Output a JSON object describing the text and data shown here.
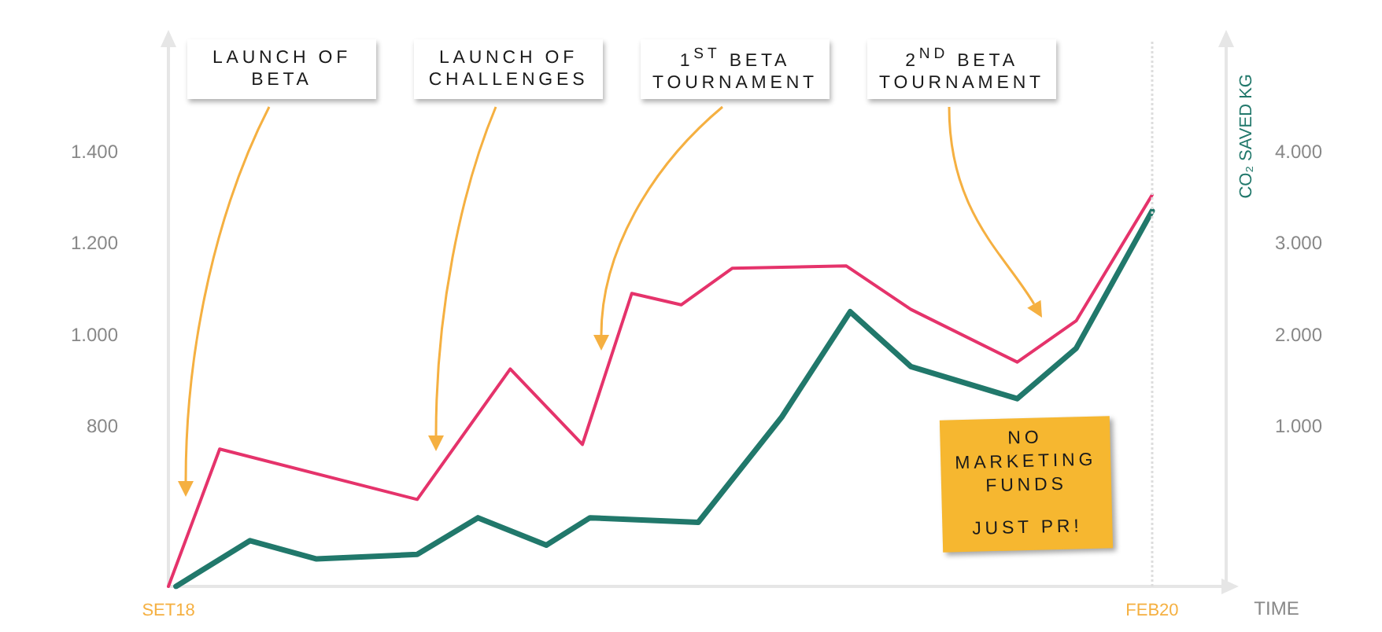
{
  "chart_data": {
    "type": "line",
    "xlabel": "TIME",
    "y2label": "CO₂ SAVED KG",
    "xlim": [
      "2018-09-01",
      "2020-03-11"
    ],
    "xticks": [
      {
        "value": "2018-09",
        "label": "SET18"
      },
      {
        "value": "2020-02",
        "label": "FEB20"
      }
    ],
    "ylim": [
      450,
      1645
    ],
    "yticks": [
      800,
      {
        "value": 1000,
        "label": "1.000"
      },
      {
        "value": 1200,
        "label": "1.200"
      },
      {
        "value": 1400,
        "label": "1.400"
      }
    ],
    "y2lim": [
      -750,
      5225
    ],
    "y2ticks": [
      {
        "value": 1000,
        "label": "1.000"
      },
      {
        "value": 2000,
        "label": "2.000"
      },
      {
        "value": 3000,
        "label": "3.000"
      },
      {
        "value": 4000,
        "label": "4.000"
      }
    ],
    "series": [
      {
        "color": "#e5336b",
        "x": [
          "2018-09-01",
          "2018-09-28",
          "2019-01-10",
          "2019-02-28",
          "2019-04-07",
          "2019-05-03",
          "2019-05-29",
          "2019-06-25",
          "2019-08-24",
          "2019-09-27",
          "2019-11-22",
          "2019-12-23",
          "2020-02-01"
        ],
        "values": [
          450,
          750,
          640,
          925,
          760,
          1090,
          1065,
          1145,
          1150,
          1055,
          940,
          1030,
          1305
        ]
      },
      {
        "color": "#21786b",
        "axis": "y2",
        "x": [
          "2018-09-05",
          "2018-10-14",
          "2018-11-18",
          "2019-01-10",
          "2019-02-11",
          "2019-03-19",
          "2019-04-11",
          "2019-06-07",
          "2019-07-21",
          "2019-08-26",
          "2019-09-27",
          "2019-11-22",
          "2019-12-23",
          "2020-02-01"
        ],
        "values": [
          -750,
          -250,
          -450,
          -400,
          0,
          -300,
          0,
          -50,
          1100,
          2250,
          1650,
          1300,
          1850,
          3350
        ]
      }
    ],
    "ref_lines": [
      {
        "axis": "x",
        "value": "2020-02",
        "color": "#dddddd",
        "line_style": "dotted"
      }
    ],
    "annotations": [
      "LAUNCH OF BETA",
      "LAUNCH OF CHALLENGES",
      "1$^{ST}$ BETA TOURNAMENT",
      "2$^{ND}$ BETA TOURNAMENT",
      "NO MARKETING FUNDS",
      "JUST PR!"
    ]
  }
}
